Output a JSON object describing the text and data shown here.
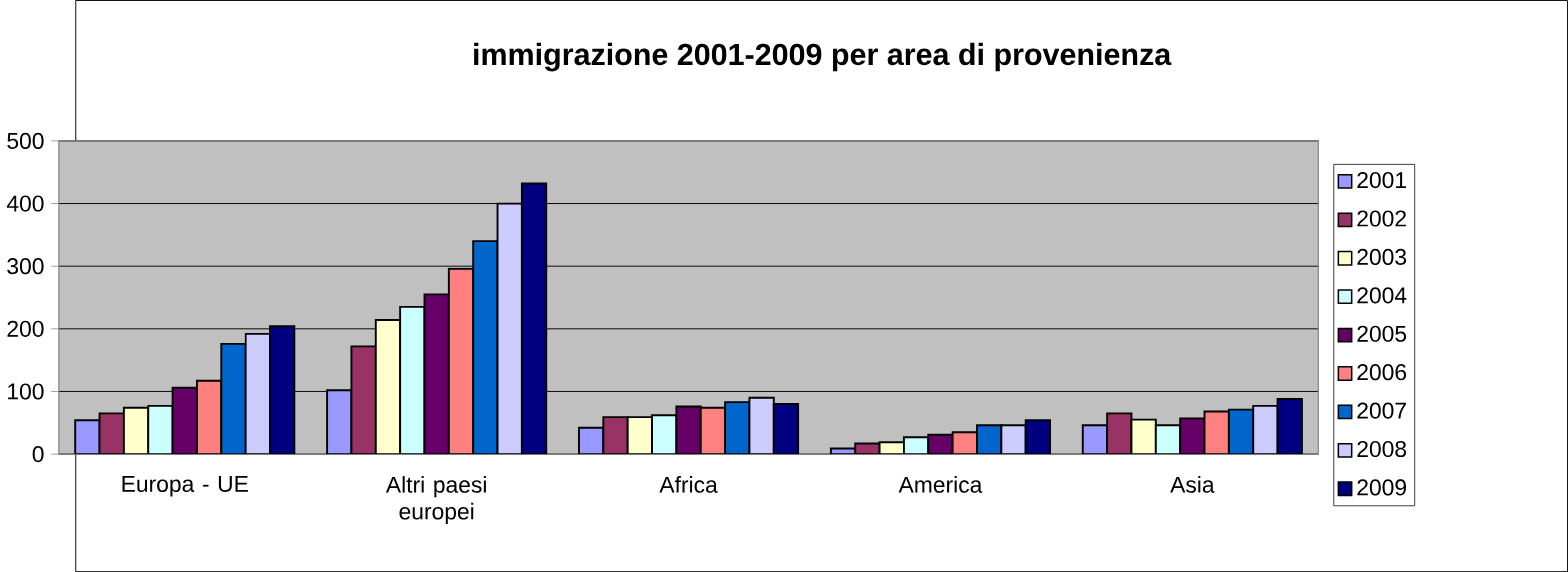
{
  "chart_data": {
    "type": "bar",
    "title": "immigrazione  2001-2009   per area di provenienza",
    "categories": [
      "Europa - UE",
      "Altri paesi europei",
      "Africa",
      "America",
      "Asia"
    ],
    "series": [
      {
        "name": "2001",
        "color": "#9999ff",
        "values": [
          54,
          102,
          42,
          9,
          46
        ]
      },
      {
        "name": "2002",
        "color": "#993366",
        "values": [
          65,
          172,
          59,
          17,
          65
        ]
      },
      {
        "name": "2003",
        "color": "#ffffcc",
        "values": [
          74,
          214,
          59,
          19,
          55
        ]
      },
      {
        "name": "2004",
        "color": "#ccffff",
        "values": [
          77,
          235,
          62,
          27,
          46
        ]
      },
      {
        "name": "2005",
        "color": "#660066",
        "values": [
          106,
          255,
          76,
          31,
          57
        ]
      },
      {
        "name": "2006",
        "color": "#ff8080",
        "values": [
          117,
          296,
          74,
          35,
          68
        ]
      },
      {
        "name": "2007",
        "color": "#0066cc",
        "values": [
          176,
          340,
          83,
          46,
          71
        ]
      },
      {
        "name": "2008",
        "color": "#ccccff",
        "values": [
          192,
          400,
          90,
          46,
          77
        ]
      },
      {
        "name": "2009",
        "color": "#000080",
        "values": [
          204,
          432,
          80,
          54,
          88
        ]
      }
    ],
    "ylim": [
      0,
      500
    ],
    "yticks": [
      0,
      100,
      200,
      300,
      400,
      500
    ],
    "grid": "y",
    "legend": "right"
  }
}
